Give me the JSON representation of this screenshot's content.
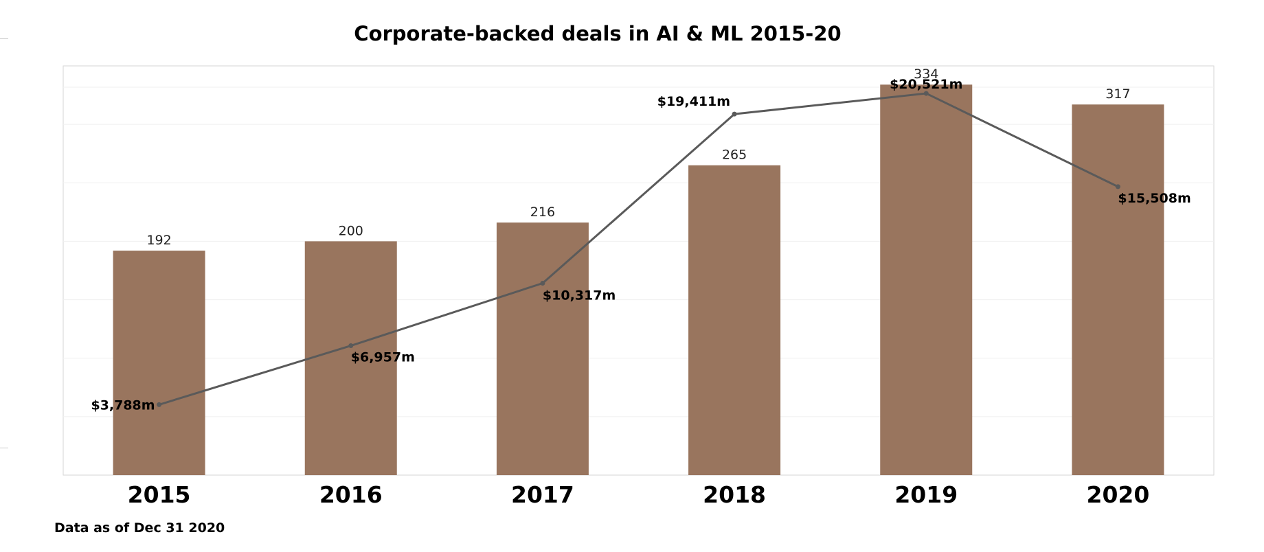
{
  "chart_data": {
    "type": "bar",
    "title": "Corporate-backed deals in AI & ML 2015-20",
    "categories": [
      "2015",
      "2016",
      "2017",
      "2018",
      "2019",
      "2020"
    ],
    "series": [
      {
        "kind": "bar",
        "values": [
          192,
          200,
          216,
          265,
          334,
          317
        ],
        "labels": [
          "192",
          "200",
          "216",
          "265",
          "334",
          "317"
        ],
        "color": "#99755e"
      },
      {
        "kind": "line",
        "values": [
          3788,
          6957,
          10317,
          19411,
          20521,
          15508
        ],
        "labels": [
          "$3,788m",
          "$6,957m",
          "$10,317m",
          "$19,411m",
          "$20,521m",
          "$15,508m"
        ],
        "color": "#5a5a5a"
      }
    ],
    "bar_ylim": [
      0,
      350
    ],
    "line_ylim": [
      0,
      22000
    ],
    "grid": true,
    "footnote": "Data as of Dec 31 2020"
  }
}
